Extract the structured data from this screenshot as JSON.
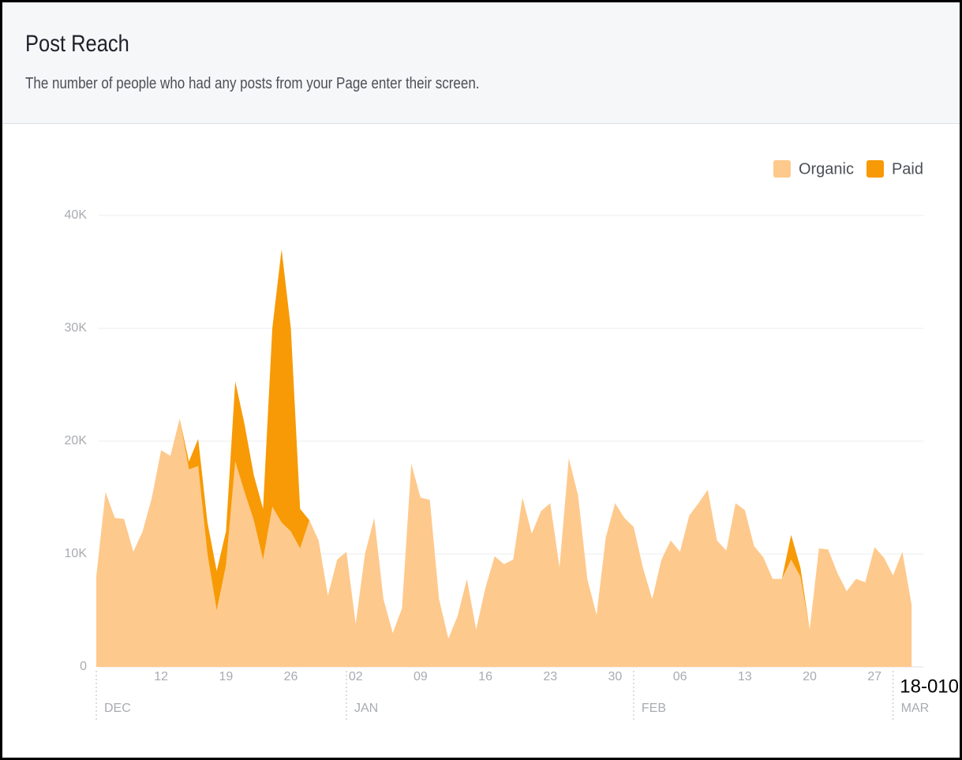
{
  "header": {
    "title": "Post Reach",
    "subtitle": "The number of people who had any posts from your Page enter their screen."
  },
  "chart_data": {
    "type": "stacked_area",
    "categories": [
      null,
      null,
      null,
      null,
      null,
      null,
      null,
      "12",
      null,
      null,
      null,
      null,
      null,
      null,
      "19",
      null,
      null,
      null,
      null,
      null,
      null,
      "26",
      null,
      null,
      null,
      null,
      null,
      null,
      "02",
      null,
      null,
      null,
      null,
      null,
      null,
      "09",
      null,
      null,
      null,
      null,
      null,
      null,
      "16",
      null,
      null,
      null,
      null,
      null,
      null,
      "23",
      null,
      null,
      null,
      null,
      null,
      null,
      "30",
      null,
      null,
      null,
      null,
      null,
      null,
      "06",
      null,
      null,
      null,
      null,
      null,
      null,
      "13",
      null,
      null,
      null,
      null,
      null,
      null,
      "20",
      null,
      null,
      null,
      null,
      null,
      null,
      "27",
      null,
      null,
      null,
      null
    ],
    "month_markers": [
      {
        "label": "DEC",
        "at": 0
      },
      {
        "label": "JAN",
        "at": 27
      },
      {
        "label": "FEB",
        "at": 58
      },
      {
        "label": "MAR",
        "at": 86
      }
    ],
    "series": [
      {
        "name": "Organic",
        "color": "#fec98c",
        "values": [
          8000,
          15500,
          13200,
          13100,
          10200,
          12000,
          15000,
          19200,
          18700,
          22000,
          17500,
          17800,
          10000,
          5000,
          9000,
          18200,
          15500,
          13000,
          9500,
          14200,
          12800,
          12000,
          10500,
          13000,
          11200,
          6300,
          9500,
          10200,
          3800,
          10000,
          13200,
          6000,
          3000,
          5200,
          18000,
          15000,
          14800,
          6000,
          2500,
          4500,
          7800,
          3300,
          7000,
          9800,
          9100,
          9500,
          15000,
          11800,
          13800,
          14500,
          8800,
          18500,
          15200,
          7800,
          4600,
          11500,
          14500,
          13200,
          12400,
          8800,
          6000,
          9500,
          11200,
          10200,
          13400,
          14500,
          15700,
          11200,
          10300,
          14500,
          13900,
          10700,
          9700,
          7800,
          7800,
          9500,
          8000,
          3300,
          10500,
          10400,
          8300,
          6700,
          7800,
          7500,
          10600,
          9700,
          8100,
          10200,
          5500
        ]
      },
      {
        "name": "Paid",
        "color": "#f79a05",
        "values": [
          0,
          0,
          0,
          0,
          0,
          0,
          0,
          0,
          0,
          0,
          700,
          2400,
          2800,
          3500,
          3000,
          7100,
          6000,
          4000,
          4500,
          15800,
          24200,
          18000,
          3500,
          0,
          0,
          0,
          0,
          0,
          0,
          0,
          0,
          0,
          0,
          0,
          0,
          0,
          0,
          0,
          0,
          0,
          0,
          0,
          0,
          0,
          0,
          0,
          0,
          0,
          0,
          0,
          0,
          0,
          0,
          0,
          0,
          0,
          0,
          0,
          0,
          0,
          0,
          0,
          0,
          0,
          0,
          0,
          0,
          0,
          0,
          0,
          0,
          0,
          0,
          0,
          0,
          2200,
          800,
          0,
          0,
          0,
          0,
          0,
          0,
          0,
          0,
          0,
          0,
          0,
          0
        ]
      }
    ],
    "ylim": [
      0,
      40000
    ],
    "yticks": [
      0,
      {
        "value": 10000,
        "label": "10K"
      },
      {
        "value": 20000,
        "label": "20K"
      },
      {
        "value": 30000,
        "label": "30K"
      },
      {
        "value": 40000,
        "label": "40K"
      }
    ],
    "grid": true,
    "legend": "top-right",
    "annotation": "18-010"
  }
}
